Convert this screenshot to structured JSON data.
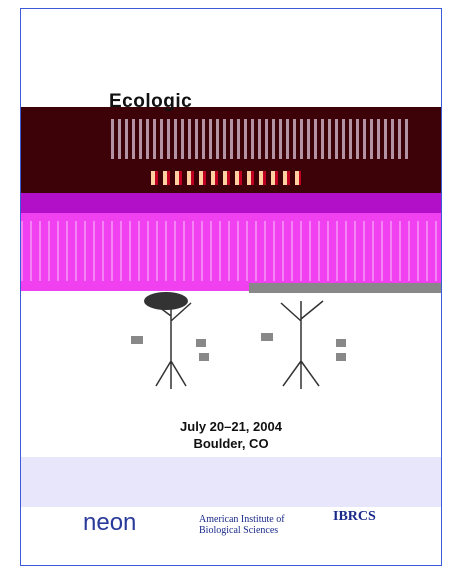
{
  "cover": {
    "title": "Ecologic",
    "date": "July 20–21, 2004",
    "location": "Boulder, CO",
    "logos": [
      "neon",
      "American Institute of Biological Sciences",
      "IBRCS"
    ]
  }
}
